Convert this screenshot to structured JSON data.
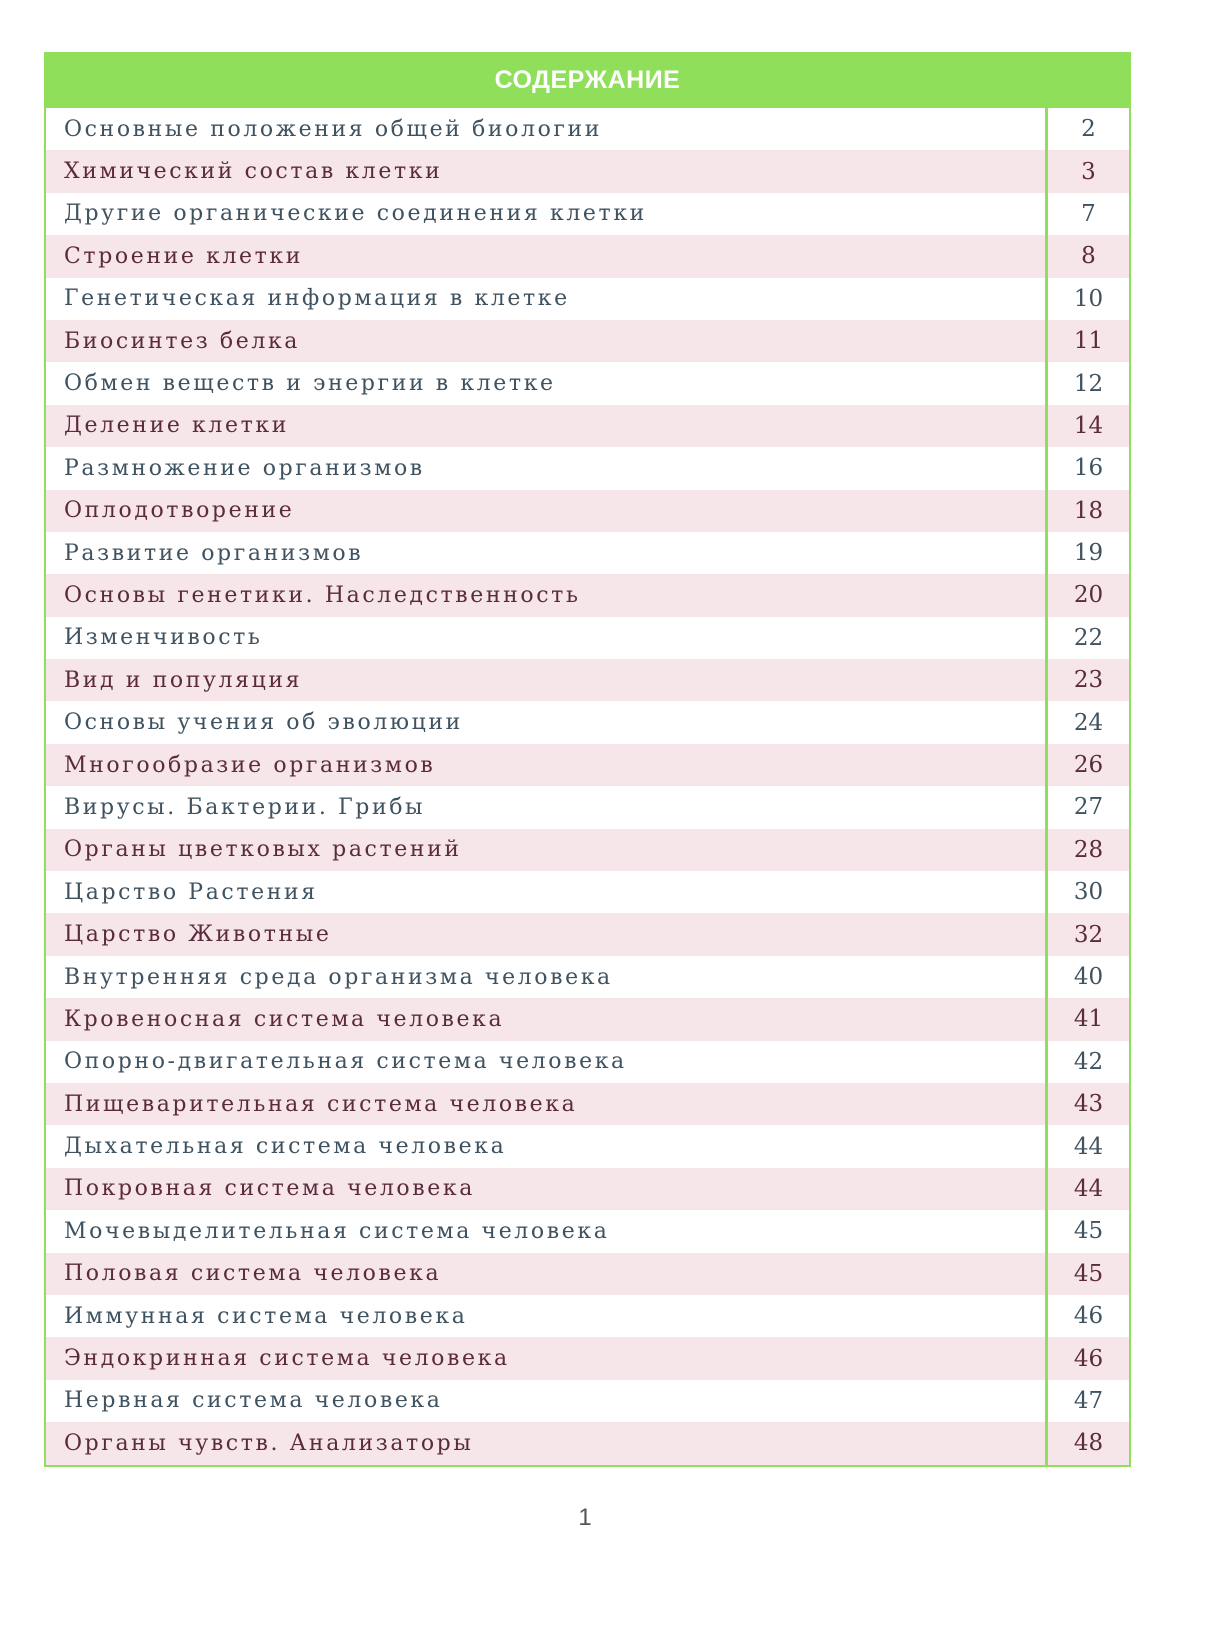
{
  "toc": {
    "title": "СОДЕРЖАНИЕ",
    "entries": [
      {
        "title": "Основные положения общей биологии",
        "page": "2"
      },
      {
        "title": "Химический состав клетки",
        "page": "3"
      },
      {
        "title": "Другие органические соединения клетки",
        "page": "7"
      },
      {
        "title": "Строение клетки",
        "page": "8"
      },
      {
        "title": "Генетическая информация в клетке",
        "page": "10"
      },
      {
        "title": "Биосинтез белка",
        "page": "11"
      },
      {
        "title": "Обмен веществ и энергии в клетке",
        "page": "12"
      },
      {
        "title": "Деление клетки",
        "page": "14"
      },
      {
        "title": "Размножение организмов",
        "page": "16"
      },
      {
        "title": "Оплодотворение",
        "page": "18"
      },
      {
        "title": "Развитие организмов",
        "page": "19"
      },
      {
        "title": "Основы генетики. Наследственность",
        "page": "20"
      },
      {
        "title": "Изменчивость",
        "page": "22"
      },
      {
        "title": "Вид и популяция",
        "page": "23"
      },
      {
        "title": "Основы учения об эволюции",
        "page": "24"
      },
      {
        "title": "Многообразие организмов",
        "page": "26"
      },
      {
        "title": "Вирусы. Бактерии. Грибы",
        "page": "27"
      },
      {
        "title": "Органы цветковых растений",
        "page": "28"
      },
      {
        "title": "Царство Растения",
        "page": "30"
      },
      {
        "title": "Царство Животные",
        "page": "32"
      },
      {
        "title": "Внутренняя среда организма человека",
        "page": "40"
      },
      {
        "title": "Кровеносная система человека",
        "page": "41"
      },
      {
        "title": "Опорно-двигательная система человека",
        "page": "42"
      },
      {
        "title": "Пищеварительная система человека",
        "page": "43"
      },
      {
        "title": "Дыхательная система человека",
        "page": "44"
      },
      {
        "title": "Покровная система человека",
        "page": "44"
      },
      {
        "title": "Мочевыделительная система человека",
        "page": "45"
      },
      {
        "title": "Половая система человека",
        "page": "45"
      },
      {
        "title": "Иммунная система человека",
        "page": "46"
      },
      {
        "title": "Эндокринная система человека",
        "page": "46"
      },
      {
        "title": "Нервная система человека",
        "page": "47"
      },
      {
        "title": "Органы чувств. Анализаторы",
        "page": "48"
      }
    ]
  },
  "page_number": "1",
  "colors": {
    "accent_green": "#8fdf5a",
    "row_alt": "#f6e6ea"
  }
}
